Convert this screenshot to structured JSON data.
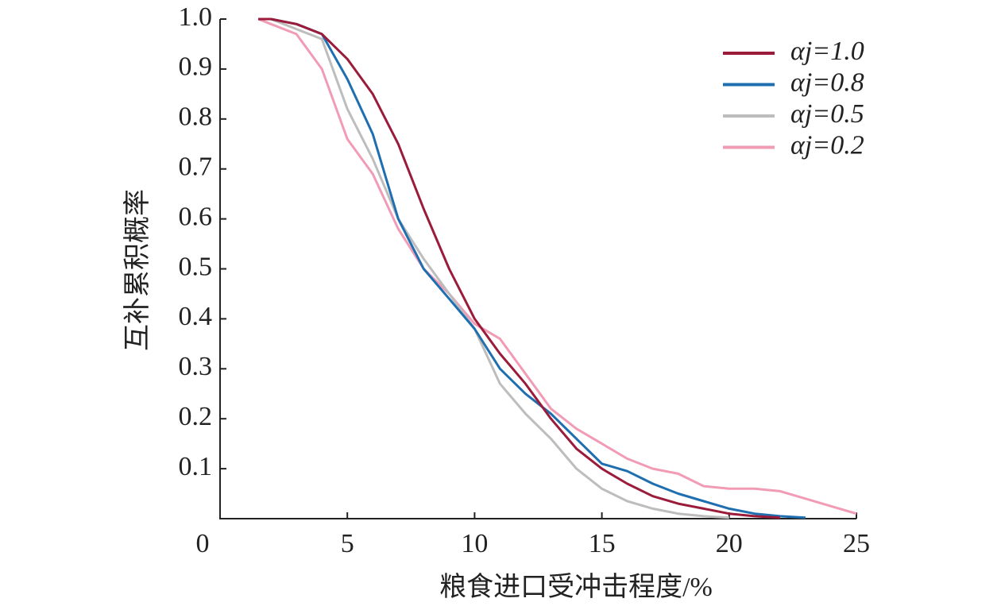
{
  "chart_data": {
    "type": "line",
    "x_label": "粮食进口受冲击程度/%",
    "y_label": "互补累积概率",
    "x": [
      1.5,
      2,
      3,
      4,
      5,
      6,
      7,
      8,
      9,
      10,
      11,
      12,
      13,
      14,
      15,
      16,
      17,
      18,
      19,
      20,
      21,
      22,
      23,
      24,
      25
    ],
    "series": [
      {
        "name": "αj=1.0",
        "color": "#9b1b3a",
        "values": [
          1.0,
          1.0,
          0.99,
          0.97,
          0.92,
          0.85,
          0.75,
          0.62,
          0.5,
          0.4,
          0.33,
          0.27,
          0.2,
          0.14,
          0.1,
          0.07,
          0.045,
          0.03,
          0.02,
          0.01,
          0.005,
          0.002,
          null,
          null,
          null
        ]
      },
      {
        "name": "αj=0.8",
        "color": "#1f6fb0",
        "values": [
          1.0,
          1.0,
          0.99,
          0.97,
          0.88,
          0.77,
          0.6,
          0.5,
          0.44,
          0.38,
          0.3,
          0.25,
          0.21,
          0.16,
          0.11,
          0.095,
          0.07,
          0.05,
          0.035,
          0.02,
          0.01,
          0.005,
          0.002,
          null,
          null
        ]
      },
      {
        "name": "αj=0.5",
        "color": "#bdbdbd",
        "values": [
          1.0,
          1.0,
          0.98,
          0.96,
          0.82,
          0.72,
          0.6,
          0.52,
          0.45,
          0.38,
          0.27,
          0.21,
          0.16,
          0.1,
          0.06,
          0.035,
          0.02,
          0.01,
          0.005,
          0.002,
          null,
          null,
          null,
          null,
          null
        ]
      },
      {
        "name": "αj=0.2",
        "color": "#f29bb5",
        "values": [
          1.0,
          0.99,
          0.97,
          0.9,
          0.76,
          0.69,
          0.58,
          0.5,
          0.45,
          0.39,
          0.36,
          0.29,
          0.22,
          0.18,
          0.15,
          0.12,
          0.1,
          0.09,
          0.065,
          0.06,
          0.06,
          0.055,
          0.04,
          0.025,
          0.01
        ]
      }
    ],
    "xlim": [
      0,
      25
    ],
    "ylim": [
      0,
      1
    ],
    "xticks": [
      0,
      5,
      10,
      15,
      20,
      25
    ],
    "yticks": [
      0.1,
      0.2,
      0.3,
      0.4,
      0.5,
      0.6,
      0.7,
      0.8,
      0.9,
      {
        "value": 1,
        "label": "1.0"
      }
    ],
    "legend": "upper right",
    "grid": false
  }
}
